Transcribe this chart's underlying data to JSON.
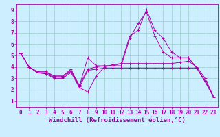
{
  "xlabel": "Windchill (Refroidissement éolien,°C)",
  "bg_color": "#cceeff",
  "line_color": "#aa00aa",
  "grid_color": "#99cccc",
  "lines": [
    {
      "x": [
        0,
        1,
        2,
        3,
        4,
        5,
        6,
        7,
        8,
        9,
        10,
        11,
        12,
        13,
        14,
        15,
        16,
        17,
        18,
        19,
        20,
        21,
        22,
        23
      ],
      "y": [
        5.2,
        4.0,
        3.6,
        3.6,
        3.2,
        3.2,
        3.8,
        2.2,
        1.8,
        3.2,
        4.0,
        4.2,
        4.3,
        6.7,
        7.2,
        9.0,
        7.2,
        6.5,
        5.3,
        4.8,
        4.8,
        3.9,
        2.7,
        1.4
      ]
    },
    {
      "x": [
        0,
        1,
        2,
        3,
        4,
        5,
        6,
        7,
        8,
        9,
        10,
        11,
        12,
        13,
        14,
        15,
        16,
        17,
        18,
        19,
        20,
        21,
        22,
        23
      ],
      "y": [
        5.2,
        4.0,
        3.5,
        3.5,
        3.2,
        3.2,
        3.7,
        2.4,
        3.8,
        4.0,
        4.1,
        4.1,
        4.3,
        4.3,
        4.3,
        4.3,
        4.3,
        4.3,
        4.3,
        4.4,
        4.5,
        4.0,
        3.0,
        1.4
      ]
    },
    {
      "x": [
        0,
        1,
        2,
        3,
        4,
        5,
        6,
        7,
        8,
        9,
        10,
        11,
        12,
        13,
        14,
        15,
        16,
        17,
        18,
        19,
        20,
        21,
        22,
        23
      ],
      "y": [
        5.2,
        4.0,
        3.5,
        3.4,
        3.0,
        3.0,
        3.5,
        2.2,
        3.7,
        3.8,
        3.9,
        3.9,
        3.9,
        3.9,
        3.9,
        3.9,
        3.9,
        3.9,
        3.9,
        3.9,
        3.9,
        3.9,
        2.8,
        1.4
      ]
    },
    {
      "x": [
        0,
        1,
        2,
        3,
        4,
        5,
        6,
        7,
        8,
        9,
        10,
        11,
        12,
        13,
        14,
        15,
        16,
        17,
        18,
        19,
        20,
        21,
        22,
        23
      ],
      "y": [
        5.2,
        4.0,
        3.5,
        3.4,
        3.1,
        3.1,
        3.6,
        2.3,
        4.8,
        4.1,
        4.1,
        4.1,
        4.1,
        6.5,
        7.8,
        8.8,
        6.7,
        5.3,
        4.8,
        4.8,
        4.8,
        3.9,
        2.7,
        1.35
      ]
    }
  ],
  "xlim": [
    -0.5,
    23.5
  ],
  "ylim": [
    0.5,
    9.5
  ],
  "xticks": [
    0,
    1,
    2,
    3,
    4,
    5,
    6,
    7,
    8,
    9,
    10,
    11,
    12,
    13,
    14,
    15,
    16,
    17,
    18,
    19,
    20,
    21,
    22,
    23
  ],
  "yticks": [
    1,
    2,
    3,
    4,
    5,
    6,
    7,
    8,
    9
  ],
  "tick_fontsize": 5.5,
  "xlabel_fontsize": 6.5,
  "figsize": [
    3.2,
    2.0
  ],
  "dpi": 100
}
